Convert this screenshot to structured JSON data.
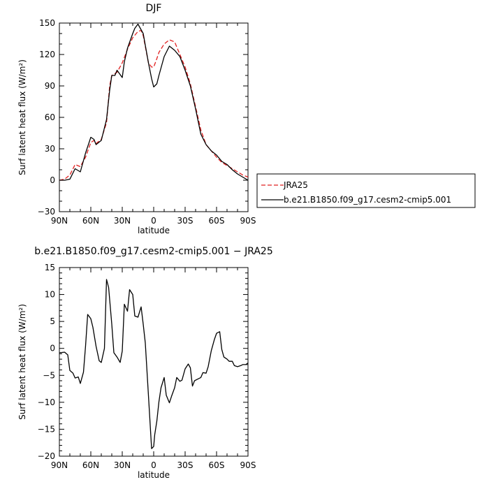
{
  "chart_data": [
    {
      "type": "line",
      "title": "DJF",
      "xlabel": "latitude",
      "ylabel": "Surf latent heat flux (W/m²)",
      "xlim": [
        90,
        -90
      ],
      "ylim": [
        -30,
        150
      ],
      "xticks": [
        90,
        60,
        30,
        0,
        -30,
        -60,
        -90
      ],
      "xtick_labels": [
        "90N",
        "60N",
        "30N",
        "0",
        "30S",
        "60S",
        "90S"
      ],
      "yticks": [
        -30,
        0,
        30,
        60,
        90,
        120,
        150
      ],
      "ytick_labels": [
        "−30",
        "0",
        "30",
        "60",
        "90",
        "120",
        "150"
      ],
      "legend_position": "right",
      "series": [
        {
          "name": "JRA25",
          "color": "#e02020",
          "dash": "dashed",
          "x": [
            90,
            85,
            80,
            75,
            70,
            65,
            60,
            57,
            55,
            50,
            45,
            42,
            40,
            35,
            30,
            25,
            20,
            15,
            12,
            10,
            5,
            2,
            0,
            -3,
            -5,
            -10,
            -15,
            -20,
            -25,
            -30,
            -35,
            -40,
            -45,
            -50,
            -55,
            -60,
            -65,
            -70,
            -75,
            -80,
            -85,
            -90
          ],
          "y": [
            0,
            1,
            5,
            15,
            13,
            22,
            36,
            38,
            35,
            39,
            55,
            90,
            100,
            103,
            112,
            125,
            136,
            142,
            143,
            138,
            112,
            108,
            108,
            116,
            122,
            130,
            134,
            132,
            120,
            108,
            92,
            70,
            48,
            34,
            28,
            22,
            17,
            14,
            11,
            8,
            5,
            3
          ]
        },
        {
          "name": "b.e21.B1850.f09_g17.cesm2-cmip5.001",
          "color": "#000000",
          "dash": "solid",
          "x": [
            90,
            85,
            80,
            75,
            70,
            65,
            60,
            57,
            55,
            50,
            45,
            42,
            40,
            37,
            35,
            30,
            28,
            25,
            20,
            18,
            15,
            10,
            5,
            2,
            0,
            -3,
            -5,
            -10,
            -15,
            -20,
            -25,
            -30,
            -35,
            -40,
            -45,
            -50,
            -55,
            -60,
            -65,
            -70,
            -75,
            -80,
            -85,
            -90
          ],
          "y": [
            0,
            0,
            1,
            11,
            8,
            26,
            41,
            39,
            34,
            38,
            58,
            86,
            100,
            100,
            105,
            98,
            113,
            126,
            140,
            145,
            149,
            140,
            112,
            97,
            89,
            92,
            100,
            118,
            128,
            124,
            118,
            105,
            90,
            68,
            44,
            34,
            28,
            24,
            18,
            15,
            10,
            6,
            3,
            0
          ]
        }
      ]
    },
    {
      "type": "line",
      "title": "b.e21.B1850.f09_g17.cesm2-cmip5.001 − JRA25",
      "xlabel": "latitude",
      "ylabel": "Surf latent heat flux (W/m²)",
      "xlim": [
        90,
        -90
      ],
      "ylim": [
        -20,
        15
      ],
      "xticks": [
        90,
        60,
        30,
        0,
        -30,
        -60,
        -90
      ],
      "xtick_labels": [
        "90N",
        "60N",
        "30N",
        "0",
        "30S",
        "60S",
        "90S"
      ],
      "yticks": [
        -20,
        -15,
        -10,
        -5,
        0,
        5,
        10,
        15
      ],
      "ytick_labels": [
        "−20",
        "−15",
        "−10",
        "−5",
        "0",
        "5",
        "10",
        "15"
      ],
      "series": [
        {
          "color": "#000000",
          "dash": "solid",
          "x": [
            90,
            85,
            82,
            80,
            77,
            75,
            72,
            70,
            67,
            65,
            63,
            60,
            58,
            55,
            52,
            50,
            47,
            45,
            43,
            40,
            38,
            35,
            32,
            30,
            28,
            25,
            23,
            20,
            18,
            15,
            12,
            10,
            8,
            6,
            4,
            2,
            0,
            -1,
            -3,
            -5,
            -7,
            -10,
            -12,
            -15,
            -17,
            -20,
            -22,
            -25,
            -27,
            -30,
            -33,
            -35,
            -37,
            -39,
            -42,
            -45,
            -47,
            -50,
            -52,
            -55,
            -58,
            -60,
            -63,
            -65,
            -67,
            -70,
            -72,
            -75,
            -77,
            -80,
            -83,
            -85,
            -88,
            -90
          ],
          "y": [
            -0.8,
            -0.7,
            -1.2,
            -4.1,
            -4.6,
            -5.5,
            -5.3,
            -6.5,
            -4.4,
            0.5,
            6.3,
            5.5,
            3.9,
            0.4,
            -2.3,
            -2.6,
            0.0,
            12.8,
            11.3,
            4.5,
            -0.8,
            -1.6,
            -2.6,
            -0.5,
            8.2,
            6.9,
            10.9,
            10.0,
            6.0,
            5.8,
            7.7,
            4.5,
            1.0,
            -5.5,
            -12.0,
            -18.6,
            -18.2,
            -16.0,
            -13.5,
            -9.9,
            -7.3,
            -5.4,
            -8.7,
            -10.1,
            -8.9,
            -7.3,
            -5.4,
            -6.1,
            -5.9,
            -3.8,
            -2.9,
            -3.6,
            -7.0,
            -6.0,
            -5.7,
            -5.4,
            -4.5,
            -4.6,
            -3.4,
            -0.4,
            1.7,
            2.8,
            3.1,
            -0.2,
            -1.6,
            -2.0,
            -2.4,
            -2.4,
            -3.2,
            -3.4,
            -3.2,
            -3.0,
            -3.0,
            -2.7
          ]
        }
      ]
    }
  ]
}
